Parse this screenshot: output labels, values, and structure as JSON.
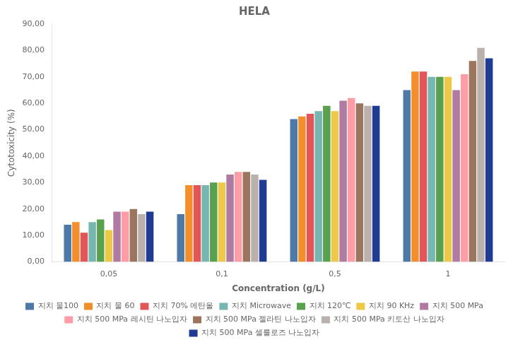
{
  "chart_data": {
    "type": "bar",
    "title": "HELA",
    "xlabel": "Concentration (g/L)",
    "ylabel": "Cytotoxicity (%)",
    "categories": [
      "0,05",
      "0,1",
      "0,5",
      "1"
    ],
    "ylim": [
      0,
      90
    ],
    "yticks": [
      {
        "value": 0,
        "label": "0,00"
      },
      {
        "value": 10,
        "label": "10,00"
      },
      {
        "value": 20,
        "label": "20,00"
      },
      {
        "value": 30,
        "label": "30,00"
      },
      {
        "value": 40,
        "label": "40,00"
      },
      {
        "value": 50,
        "label": "50,00"
      },
      {
        "value": 60,
        "label": "60,00"
      },
      {
        "value": 70,
        "label": "70,00"
      },
      {
        "value": 80,
        "label": "80,00"
      },
      {
        "value": 90,
        "label": "90,00"
      }
    ],
    "grid": false,
    "legend": "bottom",
    "series": [
      {
        "name": "지치 물100",
        "color": "#4e79a7",
        "values": [
          14,
          18,
          54,
          65
        ]
      },
      {
        "name": "지치 물 60",
        "color": "#f28e2b",
        "values": [
          15,
          29,
          55,
          72
        ]
      },
      {
        "name": "지치 70% 에탄올",
        "color": "#e15759",
        "values": [
          11,
          29,
          56,
          72
        ]
      },
      {
        "name": "지치 Microwave",
        "color": "#76b7b2",
        "values": [
          15,
          29,
          57,
          70
        ]
      },
      {
        "name": "지치 120℃",
        "color": "#59a14f",
        "values": [
          16,
          30,
          59,
          70
        ]
      },
      {
        "name": "지치 90 KHz",
        "color": "#edc948",
        "values": [
          12,
          30,
          57,
          70
        ]
      },
      {
        "name": "지치 500 MPa",
        "color": "#b07aa1",
        "values": [
          19,
          33,
          61,
          65
        ]
      },
      {
        "name": "지치 500 MPa 레시틴 나노입자",
        "color": "#ff9da7",
        "values": [
          19,
          34,
          62,
          71
        ]
      },
      {
        "name": "지치 500 MPa 젤라틴 나노입자",
        "color": "#9c755f",
        "values": [
          20,
          34,
          60,
          76
        ]
      },
      {
        "name": "지치 500 MPa 키토산 나노입자",
        "color": "#bab0ac",
        "values": [
          18,
          33,
          59,
          81
        ]
      },
      {
        "name": "지치 500 MPa 셀룰로즈 나노입자",
        "color": "#1f3a93",
        "values": [
          19,
          31,
          59,
          77
        ]
      }
    ]
  }
}
